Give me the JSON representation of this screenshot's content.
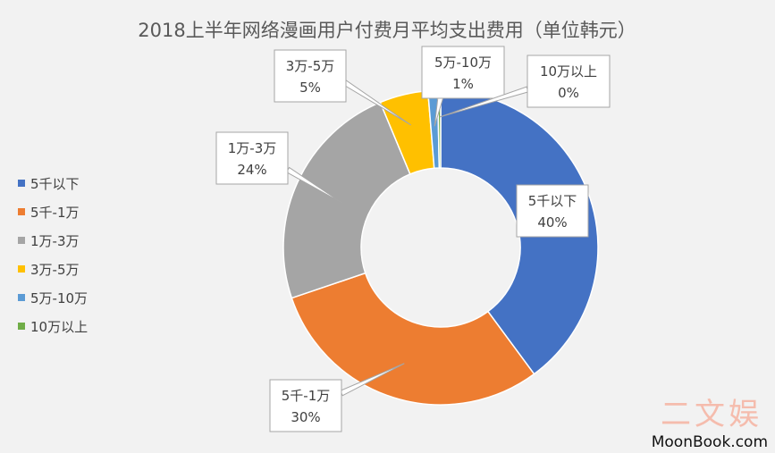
{
  "chart_data": {
    "type": "pie",
    "title": "2018上半年网络漫画用户付费月平均支出费用（单位韩元）",
    "categories": [
      "5千以下",
      "5千-1万",
      "1万-3万",
      "3万-5万",
      "5万-10万",
      "10万以上"
    ],
    "values": [
      40,
      30,
      24,
      5,
      1,
      0.3
    ],
    "data_labels": [
      {
        "name": "5千以下",
        "pct": "40%"
      },
      {
        "name": "5千-1万",
        "pct": "30%"
      },
      {
        "name": "1万-3万",
        "pct": "24%"
      },
      {
        "name": "3万-5万",
        "pct": "5%"
      },
      {
        "name": "5万-10万",
        "pct": "1%"
      },
      {
        "name": "10万以上",
        "pct": "0%"
      }
    ],
    "colors": [
      "#4472c4",
      "#ed7d31",
      "#a5a5a5",
      "#ffc000",
      "#5b9bd5",
      "#70ad47"
    ],
    "legend_position": "left",
    "donut": true
  },
  "watermark": {
    "logo_text": "二文娱",
    "url": "MoonBook.com"
  }
}
